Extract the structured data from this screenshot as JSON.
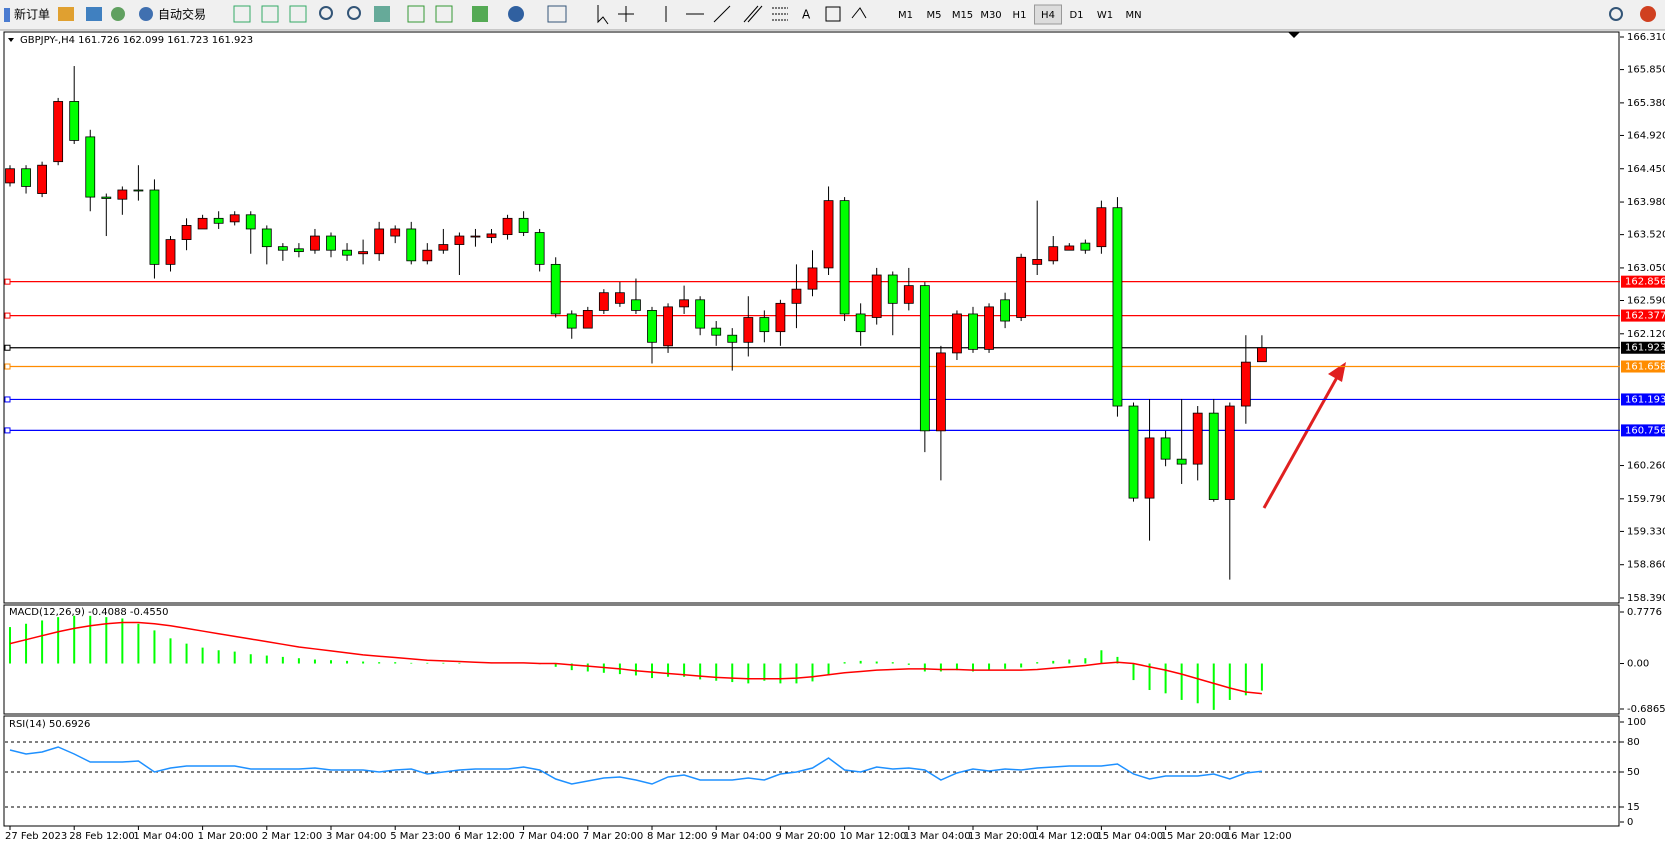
{
  "toolbar": {
    "new_order": "新订单",
    "auto_trading": "自动交易",
    "timeframes": [
      "M1",
      "M5",
      "M15",
      "M30",
      "H1",
      "H4",
      "D1",
      "W1",
      "MN"
    ],
    "active_timeframe_index": 5
  },
  "chart_data": {
    "type": "candlestick",
    "title": "GBPJPY-,H4  161.726 162.099 161.723 161.923",
    "categories": [
      "27 Feb 2023",
      null,
      null,
      null,
      "28 Feb 12:00",
      null,
      null,
      null,
      "1 Mar 04:00",
      null,
      null,
      null,
      "1 Mar 20:00",
      null,
      null,
      null,
      "2 Mar 12:00",
      null,
      null,
      null,
      "3 Mar 04:00",
      null,
      null,
      null,
      "5 Mar 23:00",
      null,
      null,
      null,
      "6 Mar 12:00",
      null,
      null,
      null,
      "7 Mar 04:00",
      null,
      null,
      null,
      "7 Mar 20:00",
      null,
      null,
      null,
      "8 Mar 12:00",
      null,
      null,
      null,
      "9 Mar 04:00",
      null,
      null,
      null,
      "9 Mar 20:00",
      null,
      null,
      null,
      "10 Mar 12:00",
      null,
      null,
      null,
      "13 Mar 04:00",
      null,
      null,
      null,
      "13 Mar 20:00",
      null,
      null,
      null,
      "14 Mar 12:00",
      null,
      null,
      null,
      "15 Mar 04:00",
      null,
      null,
      null,
      "15 Mar 20:00",
      null,
      null,
      null,
      "16 Mar 12:00",
      null,
      null
    ],
    "open": [
      164.25,
      164.45,
      164.1,
      164.55,
      165.4,
      164.9,
      164.05,
      164.02,
      164.15,
      164.15,
      163.1,
      163.45,
      163.6,
      163.75,
      163.7,
      163.8,
      163.6,
      163.35,
      163.32,
      163.3,
      163.5,
      163.3,
      163.25,
      163.25,
      163.5,
      163.6,
      163.15,
      163.3,
      163.38,
      163.5,
      163.48,
      163.52,
      163.75,
      163.55,
      163.1,
      162.4,
      162.2,
      162.45,
      162.55,
      162.6,
      162.45,
      161.95,
      162.5,
      162.6,
      162.2,
      162.1,
      162.0,
      162.35,
      162.15,
      162.55,
      162.75,
      163.05,
      164.0,
      162.4,
      162.35,
      162.95,
      162.55,
      162.8,
      160.75,
      161.85,
      162.4,
      161.9,
      162.6,
      162.35,
      163.1,
      163.15,
      163.3,
      163.4,
      163.35,
      163.9,
      161.1,
      159.8,
      160.65,
      160.35,
      160.28,
      161.0,
      159.78,
      161.1,
      161.726
    ],
    "high": [
      164.5,
      164.5,
      164.55,
      165.45,
      165.9,
      165.0,
      164.1,
      164.2,
      164.5,
      164.3,
      163.5,
      163.75,
      163.8,
      163.85,
      163.85,
      163.85,
      163.65,
      163.4,
      163.4,
      163.6,
      163.55,
      163.4,
      163.45,
      163.7,
      163.65,
      163.7,
      163.4,
      163.6,
      163.55,
      163.6,
      163.6,
      163.8,
      163.85,
      163.6,
      163.2,
      162.45,
      162.5,
      162.75,
      162.85,
      162.9,
      162.5,
      162.55,
      162.8,
      162.65,
      162.3,
      162.2,
      162.65,
      162.45,
      162.6,
      163.1,
      163.3,
      164.2,
      164.05,
      162.55,
      163.05,
      163.0,
      163.05,
      162.85,
      161.95,
      162.45,
      162.5,
      162.55,
      162.7,
      163.25,
      164.0,
      163.5,
      163.4,
      163.45,
      164.0,
      164.05,
      161.15,
      161.2,
      160.75,
      161.2,
      161.1,
      161.2,
      161.15,
      162.1,
      162.099
    ],
    "low": [
      164.2,
      164.1,
      164.05,
      164.5,
      164.8,
      163.85,
      163.5,
      163.8,
      164.0,
      162.9,
      163.0,
      163.3,
      163.6,
      163.6,
      163.65,
      163.25,
      163.1,
      163.15,
      163.2,
      163.25,
      163.2,
      163.15,
      163.1,
      163.15,
      163.4,
      163.1,
      163.1,
      163.25,
      162.95,
      163.35,
      163.4,
      163.45,
      163.5,
      163.0,
      162.35,
      162.05,
      162.2,
      162.4,
      162.5,
      162.4,
      161.7,
      161.85,
      162.4,
      162.1,
      161.95,
      161.6,
      161.8,
      162.0,
      161.95,
      162.2,
      162.65,
      162.95,
      162.3,
      161.95,
      162.25,
      162.1,
      162.45,
      160.45,
      160.05,
      161.75,
      161.85,
      161.85,
      162.2,
      162.3,
      162.95,
      163.1,
      163.3,
      163.25,
      163.25,
      160.95,
      159.75,
      159.2,
      160.25,
      160.0,
      160.05,
      159.75,
      158.65,
      160.85,
      161.723
    ],
    "close": [
      164.45,
      164.2,
      164.5,
      165.4,
      164.85,
      164.05,
      164.03,
      164.15,
      164.14,
      163.1,
      163.45,
      163.65,
      163.75,
      163.68,
      163.8,
      163.6,
      163.35,
      163.3,
      163.28,
      163.5,
      163.3,
      163.23,
      163.28,
      163.6,
      163.6,
      163.15,
      163.3,
      163.38,
      163.5,
      163.5,
      163.53,
      163.75,
      163.55,
      163.1,
      162.4,
      162.2,
      162.45,
      162.7,
      162.7,
      162.45,
      162.0,
      162.5,
      162.6,
      162.2,
      162.1,
      162.0,
      162.35,
      162.15,
      162.55,
      162.75,
      163.05,
      164.0,
      162.4,
      162.15,
      162.95,
      162.55,
      162.8,
      160.75,
      161.85,
      162.4,
      161.9,
      162.5,
      162.3,
      163.2,
      163.17,
      163.35,
      163.36,
      163.3,
      163.9,
      161.1,
      159.8,
      160.65,
      160.35,
      160.28,
      161.0,
      159.78,
      161.1,
      161.72,
      161.923
    ],
    "up_color": "#ff0000",
    "down_color": "#00ff00",
    "ylim": [
      158.39,
      166.31
    ],
    "yticks": [
      {
        "value": 166.31,
        "label": "166.310"
      },
      {
        "value": 165.85,
        "label": "165.850"
      },
      {
        "value": 165.38,
        "label": "165.380"
      },
      {
        "value": 164.92,
        "label": "164.920"
      },
      {
        "value": 164.45,
        "label": "164.450"
      },
      {
        "value": 163.98,
        "label": "163.980"
      },
      {
        "value": 163.52,
        "label": "163.520"
      },
      {
        "value": 163.05,
        "label": "163.050"
      },
      {
        "value": 162.59,
        "label": "162.590"
      },
      {
        "value": 162.12,
        "label": "162.120"
      },
      {
        "value": 160.26,
        "label": "160.260"
      },
      {
        "value": 159.79,
        "label": "159.790"
      },
      {
        "value": 159.33,
        "label": "159.330"
      },
      {
        "value": 158.86,
        "label": "158.860"
      },
      {
        "value": 158.39,
        "label": "158.390"
      }
    ],
    "levels": [
      {
        "value": 162.856,
        "color": "#ff0000"
      },
      {
        "value": 162.377,
        "color": "#ff0000"
      },
      {
        "value": 161.923,
        "color": "#000000"
      },
      {
        "value": 161.658,
        "color": "#ff8c00"
      },
      {
        "value": 161.193,
        "color": "#0000ff"
      },
      {
        "value": 160.756,
        "color": "#0000ff"
      }
    ],
    "macd": {
      "title": "MACD(12,26,9) -0.4088 -0.4550",
      "histogram": {
        "color": "#00ff00",
        "values": [
          0.55,
          0.6,
          0.65,
          0.7,
          0.72,
          0.72,
          0.7,
          0.68,
          0.6,
          0.5,
          0.38,
          0.3,
          0.24,
          0.2,
          0.18,
          0.14,
          0.12,
          0.1,
          0.08,
          0.06,
          0.05,
          0.04,
          0.03,
          0.02,
          0.02,
          0.01,
          0.01,
          0.01,
          0.01,
          0.0,
          0.01,
          0.01,
          0.0,
          -0.01,
          -0.05,
          -0.1,
          -0.12,
          -0.14,
          -0.16,
          -0.18,
          -0.22,
          -0.2,
          -0.2,
          -0.24,
          -0.26,
          -0.28,
          -0.3,
          -0.26,
          -0.3,
          -0.3,
          -0.27,
          -0.18,
          0.02,
          0.04,
          0.03,
          0.02,
          -0.02,
          -0.12,
          -0.12,
          -0.1,
          -0.12,
          -0.1,
          -0.08,
          -0.06,
          0.02,
          0.04,
          0.06,
          0.08,
          0.2,
          0.1,
          -0.25,
          -0.4,
          -0.45,
          -0.55,
          -0.6,
          -0.7,
          -0.55,
          -0.48,
          -0.4088
        ]
      },
      "signal": {
        "color": "#ff0000",
        "values": [
          0.3,
          0.36,
          0.42,
          0.48,
          0.53,
          0.57,
          0.6,
          0.62,
          0.62,
          0.6,
          0.57,
          0.53,
          0.49,
          0.45,
          0.41,
          0.37,
          0.33,
          0.29,
          0.25,
          0.22,
          0.19,
          0.16,
          0.13,
          0.11,
          0.09,
          0.07,
          0.05,
          0.04,
          0.03,
          0.02,
          0.01,
          0.01,
          0.01,
          0.0,
          0.0,
          -0.02,
          -0.04,
          -0.06,
          -0.08,
          -0.11,
          -0.13,
          -0.15,
          -0.17,
          -0.19,
          -0.21,
          -0.22,
          -0.23,
          -0.23,
          -0.23,
          -0.22,
          -0.2,
          -0.17,
          -0.14,
          -0.12,
          -0.1,
          -0.09,
          -0.08,
          -0.08,
          -0.09,
          -0.09,
          -0.1,
          -0.1,
          -0.1,
          -0.1,
          -0.09,
          -0.07,
          -0.05,
          -0.03,
          0.0,
          0.02,
          0.0,
          -0.05,
          -0.1,
          -0.16,
          -0.23,
          -0.3,
          -0.37,
          -0.43,
          -0.455
        ]
      },
      "ylim": [
        -0.6865,
        0.7776
      ],
      "yticks": [
        0.7776,
        {
          "value": 0,
          "label": "0.00"
        },
        -0.6865
      ]
    },
    "rsi": {
      "title": "RSI(14) 50.6926",
      "color": "#1e90ff",
      "values": [
        72,
        68,
        70,
        75,
        68,
        60,
        60,
        60,
        61,
        50,
        54,
        56,
        56,
        56,
        56,
        53,
        53,
        53,
        53,
        54,
        52,
        52,
        52,
        50,
        52,
        53,
        48,
        50,
        52,
        53,
        53,
        53,
        55,
        52,
        43,
        38,
        41,
        44,
        45,
        42,
        38,
        45,
        47,
        42,
        42,
        42,
        44,
        42,
        48,
        50,
        54,
        64,
        52,
        50,
        55,
        53,
        54,
        52,
        42,
        49,
        53,
        51,
        53,
        52,
        54,
        55,
        56,
        56,
        56,
        58,
        48,
        43,
        46,
        46,
        46,
        48,
        43,
        49,
        50.6926
      ],
      "ylim": [
        0,
        100
      ],
      "yticks": [
        100,
        80,
        50,
        15,
        0
      ],
      "levels": [
        80,
        50,
        15
      ]
    }
  }
}
